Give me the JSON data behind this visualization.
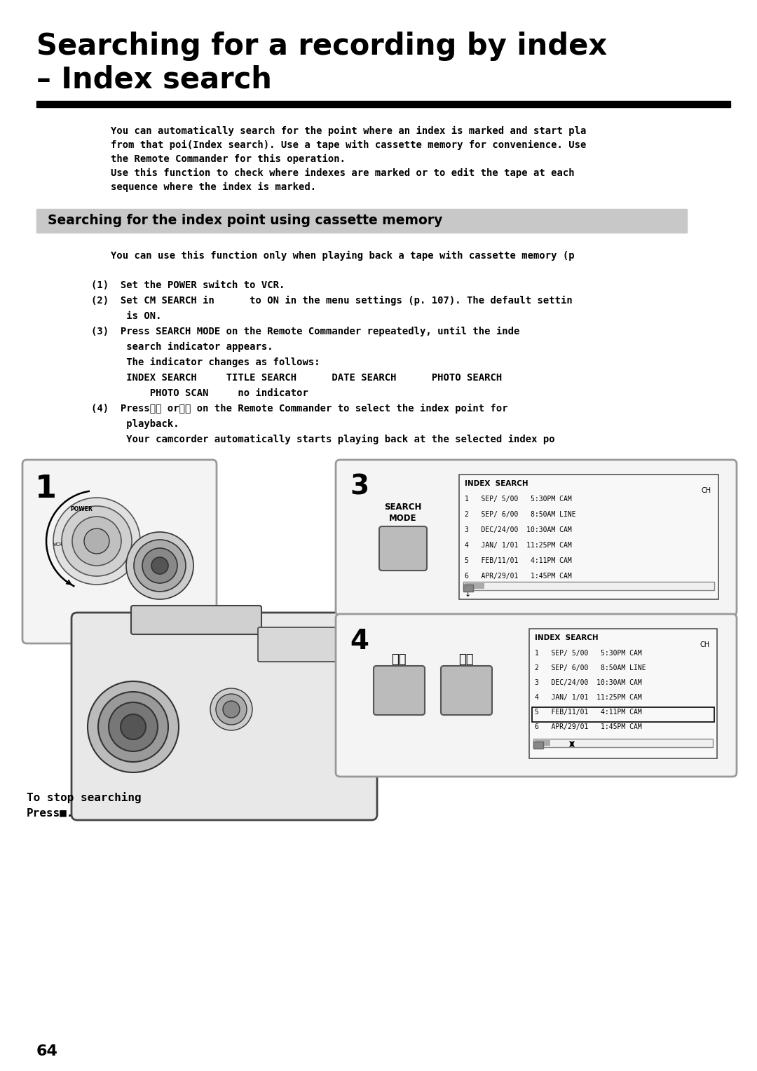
{
  "title_line1": "Searching for a recording by index",
  "title_line2": "– Index search",
  "bg_color": "#ffffff",
  "body_text_lines": [
    "You can automatically search for the point where an index is marked and start pla",
    "from that poi(Index search). Use a tape with cassette memory for convenience. Use",
    "the Remote Commander for this operation.",
    "Use this function to check where indexes are marked or to edit the tape at each",
    "sequence where the index is marked."
  ],
  "section_header": "Searching for the index point using cassette memory",
  "section_bg": "#c8c8c8",
  "body_text_2": "You can use this function only when playing back a tape with cassette memory (p",
  "steps": [
    "(1)  Set the POWER switch to VCR.",
    "(2)  Set CM SEARCH in      to ON in the menu settings (p. 107). The default settin",
    "      is ON.",
    "(3)  Press SEARCH MODE on the Remote Commander repeatedly, until the inde",
    "      search indicator appears.",
    "      The indicator changes as follows:",
    "      INDEX SEARCH     TITLE SEARCH      DATE SEARCH      PHOTO SEARCH",
    "          PHOTO SCAN     no indicator",
    "(4)  Press⏮⏮ or⏭⏭ on the Remote Commander to select the index point for",
    "      playback.",
    "      Your camcorder automatically starts playing back at the selected index po"
  ],
  "stop_text": "To stop searching",
  "stop_text2": "Press■.",
  "page_number": "64",
  "index_entries": [
    "1   SEP/ 5/00   5:30PM CAM",
    "2   SEP/ 6/00   8:50AM LINE",
    "3   DEC/24/00  10:30AM CAM",
    "4   JAN/ 1/01  11:25PM CAM",
    "5   FEB/11/01   4:11PM CAM",
    "6   APR/29/01   1:45PM CAM"
  ],
  "highlight_row": 4
}
